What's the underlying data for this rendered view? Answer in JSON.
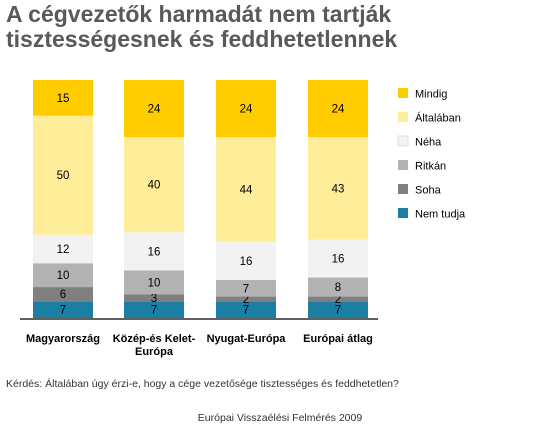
{
  "title": "A cégvezetők harmadát nem tartják tisztességesnek és feddhetetlennek",
  "question": "Kérdés: Általában úgy érzi-e, hogy a cége vezetősége tisztességes és feddhetetlen?",
  "source": "Európai Visszaélési Felmérés 2009",
  "chart_data": {
    "type": "bar",
    "stacked": true,
    "categories": [
      "Magyarország",
      "Közép-és Kelet-Európa",
      "Nyugat-Európa",
      "Európai átlag"
    ],
    "ylim": [
      0,
      100
    ],
    "grid": false,
    "legend_position": "right",
    "series": [
      {
        "name": "Nem tudja",
        "color": "#1a7fa3",
        "values": [
          7,
          7,
          7,
          7
        ]
      },
      {
        "name": "Soha",
        "color": "#808080",
        "values": [
          6,
          3,
          2,
          2
        ]
      },
      {
        "name": "Ritkán",
        "color": "#b3b3b3",
        "values": [
          10,
          10,
          7,
          8
        ]
      },
      {
        "name": "Néha",
        "color": "#f2f2f2",
        "values": [
          12,
          16,
          16,
          16
        ]
      },
      {
        "name": "Általában",
        "color": "#ffee99",
        "values": [
          50,
          40,
          44,
          43
        ]
      },
      {
        "name": "Mindig",
        "color": "#ffcc00",
        "values": [
          15,
          24,
          24,
          24
        ]
      }
    ]
  }
}
